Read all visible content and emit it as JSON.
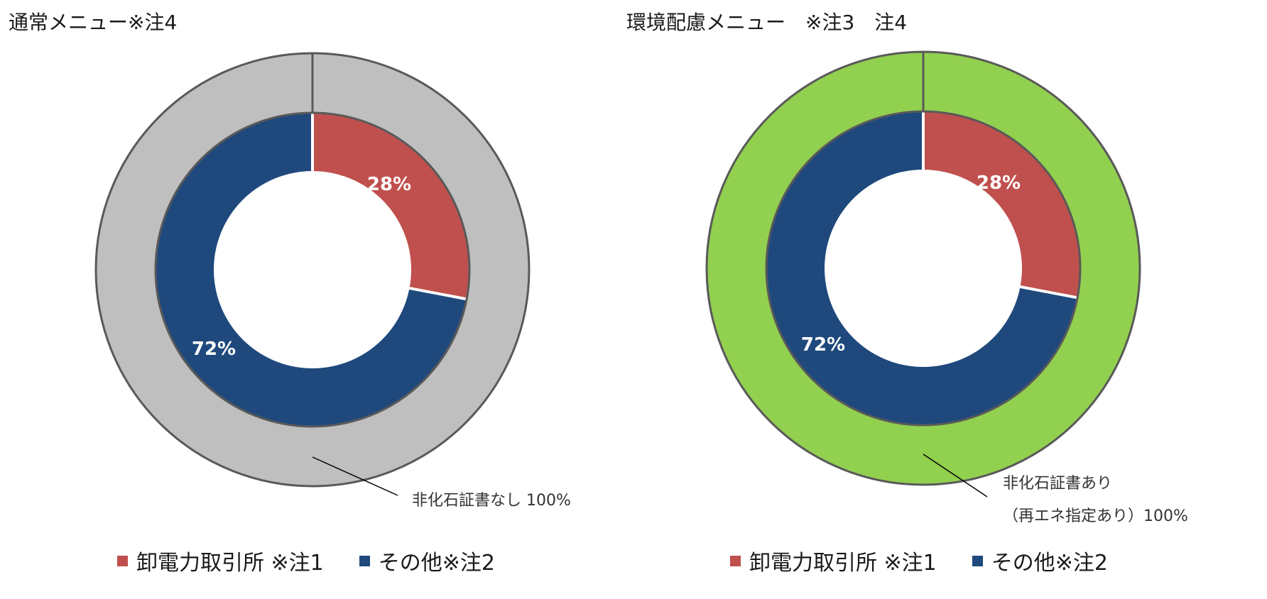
{
  "chart_data": [
    {
      "type": "pie",
      "title": "通常メニュー※注4",
      "inner_ring": {
        "slices": [
          {
            "label": "卸電力取引所 ※注1",
            "value": 28,
            "display": "28%",
            "color": "#C0504D"
          },
          {
            "label": "その他※注2",
            "value": 72,
            "display": "72%",
            "color": "#1F497D"
          }
        ]
      },
      "outer_ring": {
        "slices": [
          {
            "label": "非化石証書なし",
            "value": 100,
            "color": "#BFBFBF"
          }
        ],
        "annotation_lines": [
          "非化石証書なし 100%"
        ]
      },
      "legend": [
        {
          "label": "卸電力取引所 ※注1",
          "color": "#C0504D"
        },
        {
          "label": "その他※注2",
          "color": "#1F497D"
        }
      ],
      "legend_position": "bottom"
    },
    {
      "type": "pie",
      "title": "環境配慮メニュー　※注3　注4",
      "inner_ring": {
        "slices": [
          {
            "label": "卸電力取引所 ※注1",
            "value": 28,
            "display": "28%",
            "color": "#C0504D"
          },
          {
            "label": "その他※注2",
            "value": 72,
            "display": "72%",
            "color": "#1F497D"
          }
        ]
      },
      "outer_ring": {
        "slices": [
          {
            "label": "非化石証書あり（再エネ指定あり）",
            "value": 100,
            "color": "#92D050"
          }
        ],
        "annotation_lines": [
          "非化石証書あり",
          "（再エネ指定あり）100%"
        ]
      },
      "legend": [
        {
          "label": "卸電力取引所 ※注1",
          "color": "#C0504D"
        },
        {
          "label": "その他※注2",
          "color": "#1F497D"
        }
      ],
      "legend_position": "bottom"
    }
  ],
  "colors": {
    "ring_border": "#595959",
    "slice_separator": "#ffffff",
    "data_label_text": "#ffffff"
  }
}
